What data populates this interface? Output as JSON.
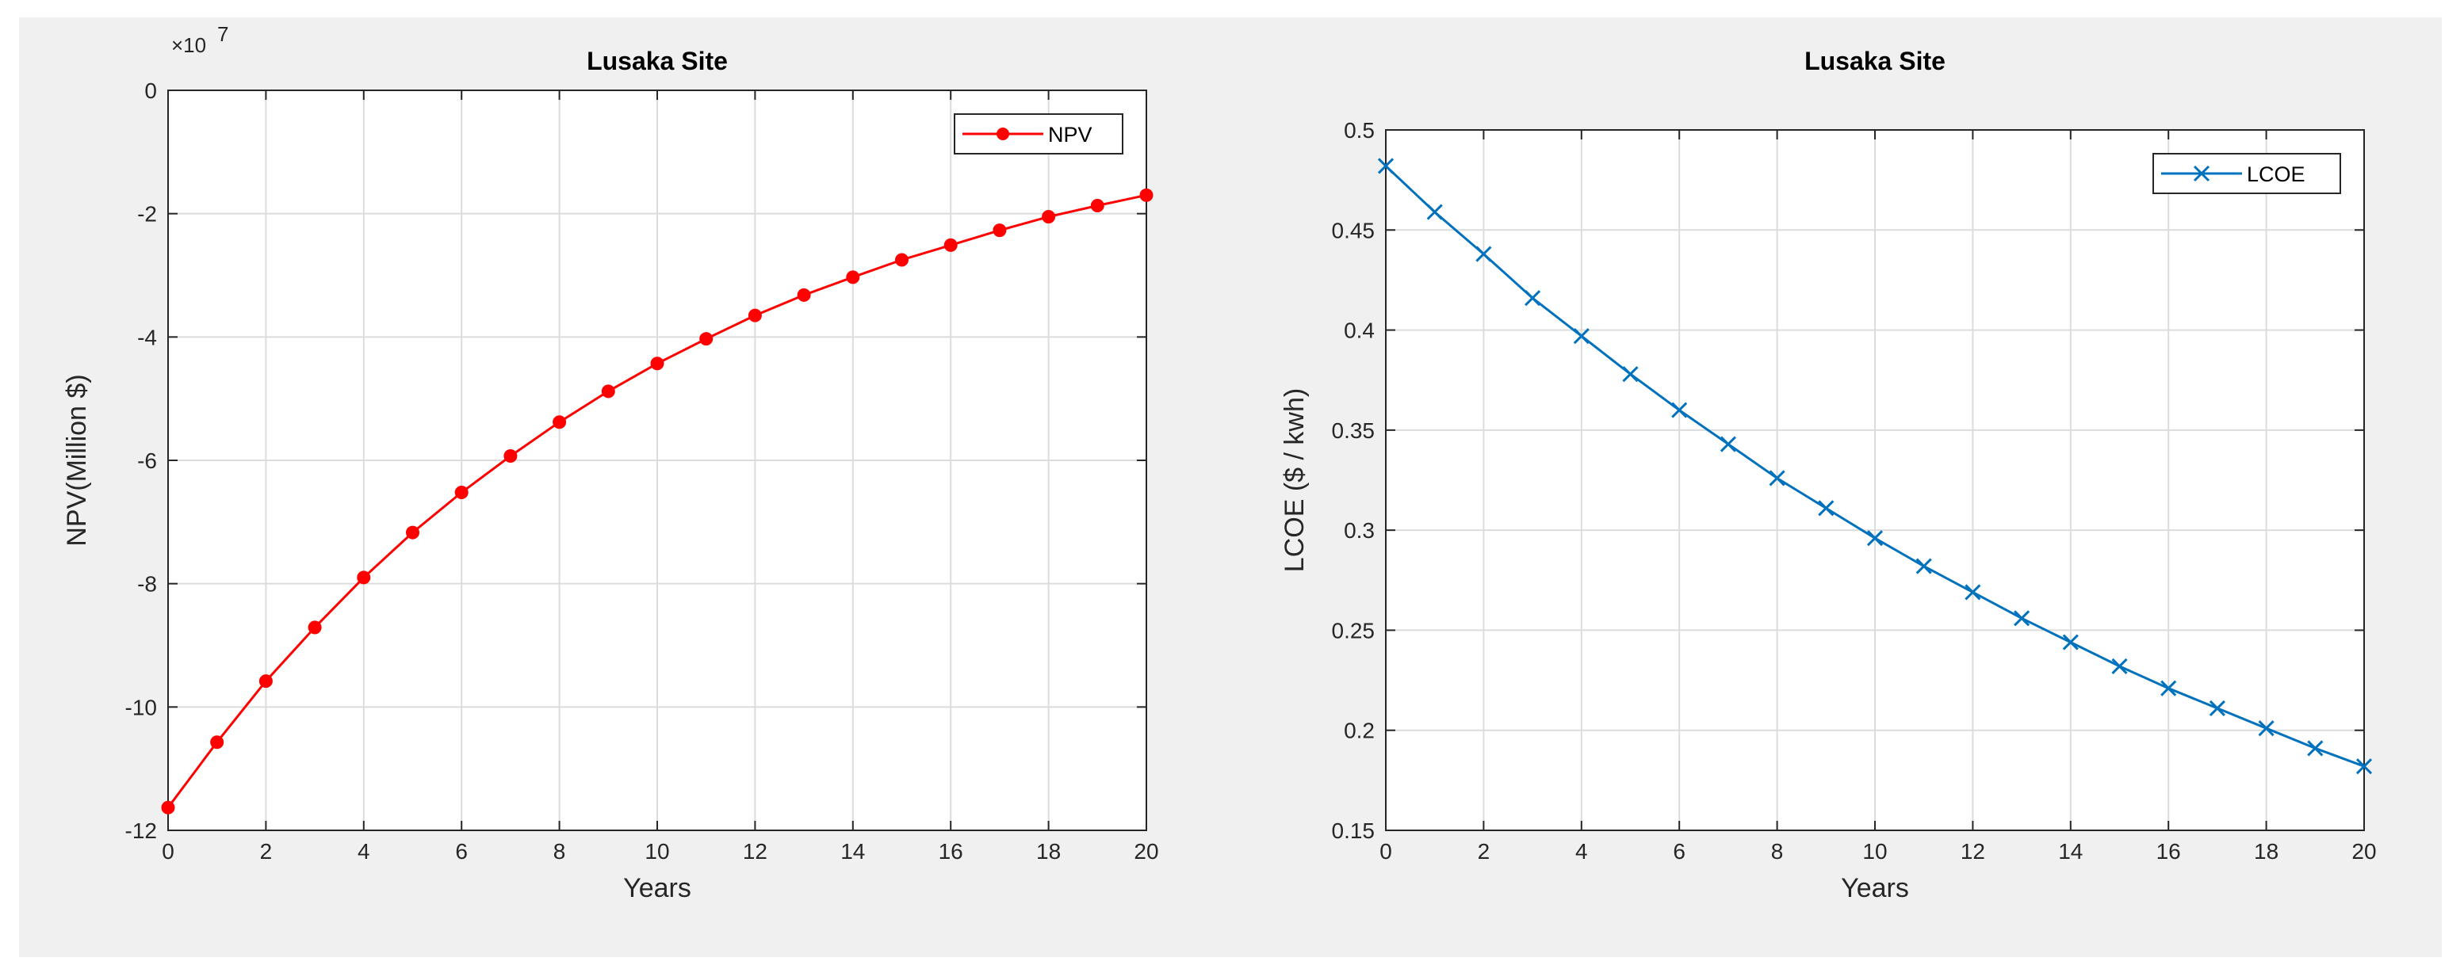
{
  "chart_data": [
    {
      "type": "line",
      "title": "Lusaka Site",
      "xlabel": "Years",
      "ylabel": "NPV(Million $)",
      "y_exponent_label": "×10",
      "y_exponent_power": "7",
      "xlim": [
        0,
        20
      ],
      "ylim": [
        -12,
        0
      ],
      "x_ticks": [
        0,
        2,
        4,
        6,
        8,
        10,
        12,
        14,
        16,
        18,
        20
      ],
      "y_ticks": [
        0,
        -2,
        -4,
        -6,
        -8,
        -10,
        -12
      ],
      "x_tick_labels": [
        "0",
        "2",
        "4",
        "6",
        "8",
        "10",
        "12",
        "14",
        "16",
        "18",
        "20"
      ],
      "y_tick_labels": [
        "0",
        "-2",
        "-4",
        "-6",
        "-8",
        "-10",
        "-12"
      ],
      "grid": true,
      "legend_position": "top-right",
      "x": [
        0,
        1,
        2,
        3,
        4,
        5,
        6,
        7,
        8,
        9,
        10,
        11,
        12,
        13,
        14,
        15,
        16,
        17,
        18,
        19,
        20
      ],
      "series": [
        {
          "name": "NPV",
          "color": "#ff0000",
          "marker": "circle",
          "values": [
            -11.63,
            -10.57,
            -9.58,
            -8.71,
            -7.9,
            -7.17,
            -6.52,
            -5.93,
            -5.38,
            -4.88,
            -4.43,
            -4.03,
            -3.65,
            -3.32,
            -3.03,
            -2.75,
            -2.51,
            -2.27,
            -2.05,
            -1.87,
            -1.7
          ]
        }
      ]
    },
    {
      "type": "line",
      "title": "Lusaka Site",
      "xlabel": "Years",
      "ylabel": "LCOE ($ / kwh)",
      "xlim": [
        0,
        20
      ],
      "ylim": [
        0.15,
        0.5
      ],
      "x_ticks": [
        0,
        2,
        4,
        6,
        8,
        10,
        12,
        14,
        16,
        18,
        20
      ],
      "y_ticks": [
        0.15,
        0.2,
        0.25,
        0.3,
        0.35,
        0.4,
        0.45,
        0.5
      ],
      "x_tick_labels": [
        "0",
        "2",
        "4",
        "6",
        "8",
        "10",
        "12",
        "14",
        "16",
        "18",
        "20"
      ],
      "y_tick_labels": [
        "0.15",
        "0.2",
        "0.25",
        "0.3",
        "0.35",
        "0.4",
        "0.45",
        "0.5"
      ],
      "grid": true,
      "legend_position": "top-right",
      "x": [
        0,
        1,
        2,
        3,
        4,
        5,
        6,
        7,
        8,
        9,
        10,
        11,
        12,
        13,
        14,
        15,
        16,
        17,
        18,
        19,
        20
      ],
      "series": [
        {
          "name": "LCOE",
          "color": "#0072bd",
          "marker": "x",
          "values": [
            0.482,
            0.459,
            0.438,
            0.416,
            0.397,
            0.378,
            0.36,
            0.343,
            0.326,
            0.311,
            0.296,
            0.282,
            0.269,
            0.256,
            0.244,
            0.232,
            0.221,
            0.211,
            0.201,
            0.191,
            0.182
          ]
        }
      ]
    }
  ]
}
